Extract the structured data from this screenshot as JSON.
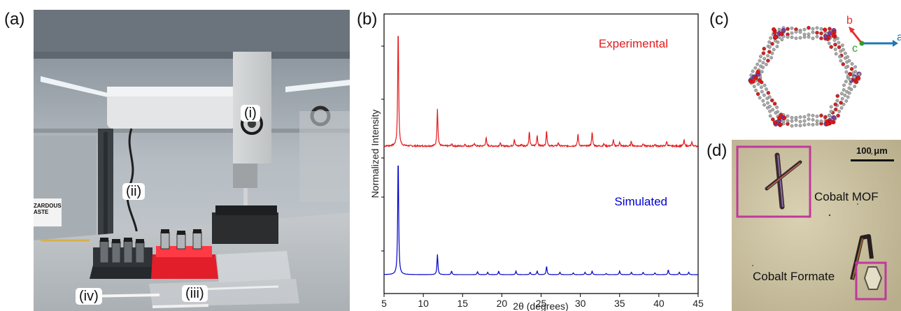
{
  "panels": {
    "a": {
      "label": "(a)",
      "callouts": {
        "i": "(i)",
        "ii": "(ii)",
        "iii": "(iii)",
        "iv": "(iv)"
      },
      "sign_text": "ZARDOUS\nASTE"
    },
    "b": {
      "label": "(b)",
      "ylabel": "Normalized Intensity",
      "xlabel": "2θ (degrees)"
    },
    "c": {
      "label": "(c)",
      "axes": {
        "b": "b",
        "c": "c",
        "a": "a"
      },
      "axis_colors": {
        "b": "#e53030",
        "c": "#2ca02c",
        "a": "#1f77b4"
      }
    },
    "d": {
      "label": "(d)",
      "scale_bar": "100 μm",
      "crystal_labels": {
        "mof": "Cobalt MOF",
        "formate": "Cobalt Formate"
      },
      "box_color": "#c0399b"
    }
  },
  "chart_data": {
    "type": "line",
    "xlabel": "2θ (degrees)",
    "ylabel": "Normalized Intensity",
    "xlim": [
      5,
      45
    ],
    "xticks": [
      5,
      10,
      15,
      20,
      25,
      30,
      35,
      40,
      45
    ],
    "series": [
      {
        "name": "Experimental",
        "color": "#e41a1c",
        "peaks": [
          {
            "x": 6.8,
            "y": 1.0
          },
          {
            "x": 11.8,
            "y": 0.31
          },
          {
            "x": 13.6,
            "y": 0.02
          },
          {
            "x": 15.3,
            "y": 0.015
          },
          {
            "x": 16.5,
            "y": 0.025
          },
          {
            "x": 18.0,
            "y": 0.07
          },
          {
            "x": 19.8,
            "y": 0.025
          },
          {
            "x": 21.6,
            "y": 0.06
          },
          {
            "x": 22.5,
            "y": 0.015
          },
          {
            "x": 23.5,
            "y": 0.12
          },
          {
            "x": 24.5,
            "y": 0.09
          },
          {
            "x": 25.7,
            "y": 0.13
          },
          {
            "x": 27.2,
            "y": 0.03
          },
          {
            "x": 29.7,
            "y": 0.1
          },
          {
            "x": 31.5,
            "y": 0.12
          },
          {
            "x": 33.0,
            "y": 0.02
          },
          {
            "x": 34.2,
            "y": 0.05
          },
          {
            "x": 35.0,
            "y": 0.03
          },
          {
            "x": 36.5,
            "y": 0.04
          },
          {
            "x": 38.0,
            "y": 0.02
          },
          {
            "x": 39.5,
            "y": 0.015
          },
          {
            "x": 41.0,
            "y": 0.04
          },
          {
            "x": 43.2,
            "y": 0.05
          },
          {
            "x": 44.2,
            "y": 0.03
          }
        ]
      },
      {
        "name": "Simulated",
        "color": "#0000cc",
        "peaks": [
          {
            "x": 6.8,
            "y": 1.0
          },
          {
            "x": 11.8,
            "y": 0.17
          },
          {
            "x": 13.6,
            "y": 0.03
          },
          {
            "x": 16.9,
            "y": 0.025
          },
          {
            "x": 18.2,
            "y": 0.02
          },
          {
            "x": 19.6,
            "y": 0.03
          },
          {
            "x": 21.8,
            "y": 0.03
          },
          {
            "x": 23.6,
            "y": 0.02
          },
          {
            "x": 24.5,
            "y": 0.03
          },
          {
            "x": 25.7,
            "y": 0.07
          },
          {
            "x": 27.4,
            "y": 0.02
          },
          {
            "x": 29.1,
            "y": 0.015
          },
          {
            "x": 30.6,
            "y": 0.02
          },
          {
            "x": 31.5,
            "y": 0.03
          },
          {
            "x": 33.3,
            "y": 0.01
          },
          {
            "x": 35.0,
            "y": 0.03
          },
          {
            "x": 36.5,
            "y": 0.02
          },
          {
            "x": 38.0,
            "y": 0.02
          },
          {
            "x": 39.5,
            "y": 0.015
          },
          {
            "x": 41.2,
            "y": 0.04
          },
          {
            "x": 42.6,
            "y": 0.02
          },
          {
            "x": 43.8,
            "y": 0.02
          }
        ]
      }
    ]
  }
}
